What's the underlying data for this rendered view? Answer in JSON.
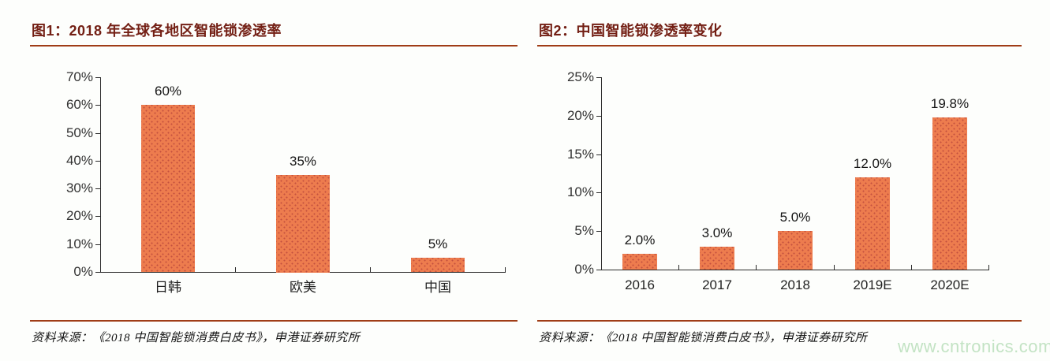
{
  "watermark": {
    "text": "www.cntronics.com",
    "color": "#C3E3C4"
  },
  "colors": {
    "title_text": "#731F14",
    "rule": "#A03D17",
    "bar_fill": "#ED7C4E",
    "bar_dot": "#C3503F",
    "axis": "#2B2B2B",
    "background": "#FDFEFC"
  },
  "chart_data": [
    {
      "type": "bar",
      "title": "图1：2018 年全球各地区智能锁渗透率",
      "categories": [
        "日韩",
        "欧美",
        "中国"
      ],
      "values": [
        60,
        35,
        5
      ],
      "data_labels": [
        "60%",
        "35%",
        "5%"
      ],
      "xlabel": "",
      "ylabel": "",
      "ylim": [
        0,
        70
      ],
      "ytick_step": 10,
      "ytick_labels": [
        "0%",
        "10%",
        "20%",
        "30%",
        "40%",
        "50%",
        "60%",
        "70%"
      ],
      "grid": false,
      "legend_position": "none",
      "source": "资料来源：《2018 中国智能锁消费白皮书》，申港证券研究所"
    },
    {
      "type": "bar",
      "title": "图2：中国智能锁渗透率变化",
      "categories": [
        "2016",
        "2017",
        "2018",
        "2019E",
        "2020E"
      ],
      "values": [
        2.0,
        3.0,
        5.0,
        12.0,
        19.8
      ],
      "data_labels": [
        "2.0%",
        "3.0%",
        "5.0%",
        "12.0%",
        "19.8%"
      ],
      "xlabel": "",
      "ylabel": "",
      "ylim": [
        0,
        25
      ],
      "ytick_step": 5,
      "ytick_labels": [
        "0%",
        "5%",
        "10%",
        "15%",
        "20%",
        "25%"
      ],
      "grid": false,
      "legend_position": "none",
      "source": "资料来源：《2018 中国智能锁消费白皮书》，申港证券研究所"
    }
  ]
}
